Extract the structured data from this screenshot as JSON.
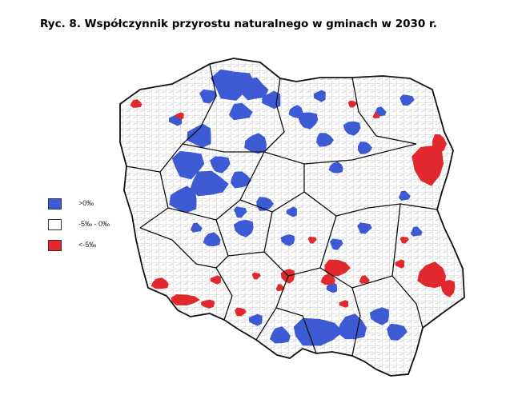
{
  "figure": {
    "title": "Ryc. 8. Współczynnik przyrostu naturalnego w gminach w 2030 r."
  },
  "legend": {
    "items": [
      {
        "label": ">0‰",
        "color": "#3b5bdb"
      },
      {
        "label": "-5‰ - 0‰",
        "color": "#ffffff"
      },
      {
        "label": "<-5‰",
        "color": "#e8262b"
      }
    ]
  },
  "map": {
    "region": "Polska",
    "colors": {
      "positive": "#3b5bdb",
      "neutral": "#ffffff",
      "negative": "#e8262b",
      "border": "#222222"
    }
  }
}
